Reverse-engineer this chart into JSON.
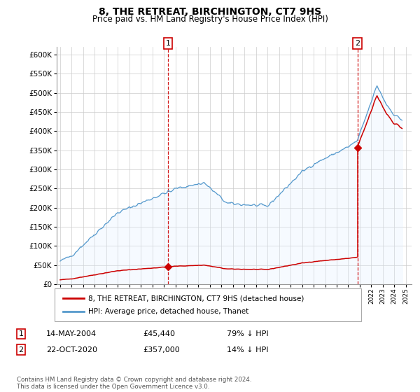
{
  "title": "8, THE RETREAT, BIRCHINGTON, CT7 9HS",
  "subtitle": "Price paid vs. HM Land Registry's House Price Index (HPI)",
  "legend_property": "8, THE RETREAT, BIRCHINGTON, CT7 9HS (detached house)",
  "legend_hpi": "HPI: Average price, detached house, Thanet",
  "footer": "Contains HM Land Registry data © Crown copyright and database right 2024.\nThis data is licensed under the Open Government Licence v3.0.",
  "annotation1_label": "1",
  "annotation1_date": "14-MAY-2004",
  "annotation1_price": "£45,440",
  "annotation1_hpi": "79% ↓ HPI",
  "annotation1_year": 2004.37,
  "annotation1_value": 45440,
  "annotation2_label": "2",
  "annotation2_date": "22-OCT-2020",
  "annotation2_price": "£357,000",
  "annotation2_hpi": "14% ↓ HPI",
  "annotation2_year": 2020.81,
  "annotation2_value": 357000,
  "property_color": "#cc0000",
  "hpi_color": "#5599cc",
  "hpi_fill_color": "#ddeeff",
  "vline_color": "#cc0000",
  "ylim": [
    0,
    620000
  ],
  "yticks": [
    0,
    50000,
    100000,
    150000,
    200000,
    250000,
    300000,
    350000,
    400000,
    450000,
    500000,
    550000,
    600000
  ],
  "xlim_start": 1994.7,
  "xlim_end": 2025.5,
  "bg_color": "#ffffff",
  "grid_color": "#cccccc"
}
